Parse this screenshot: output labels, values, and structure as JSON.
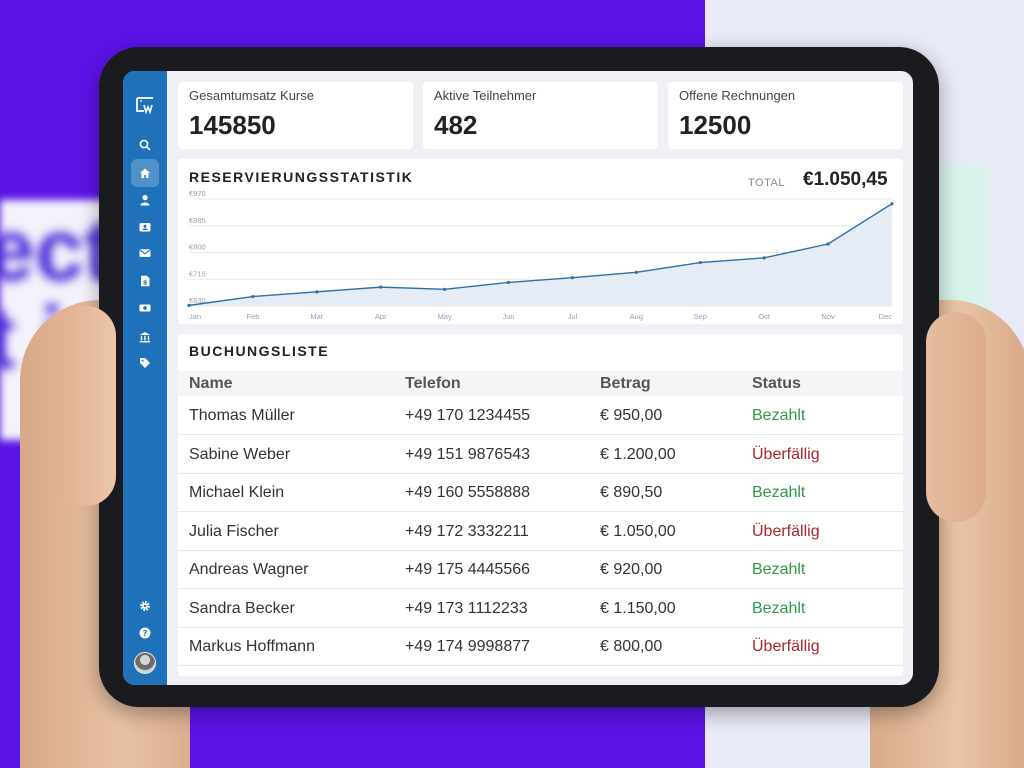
{
  "sidebar": {
    "items": [
      {
        "icon": "search-icon"
      },
      {
        "icon": "home-icon",
        "active": true
      },
      {
        "icon": "user-icon"
      },
      {
        "icon": "contact-card-icon"
      },
      {
        "icon": "mail-icon"
      },
      {
        "icon": "invoice-icon"
      },
      {
        "icon": "money-icon"
      },
      {
        "icon": "bank-icon"
      },
      {
        "icon": "tag-icon"
      }
    ],
    "bottom": [
      {
        "icon": "gear-icon"
      },
      {
        "icon": "help-icon"
      }
    ]
  },
  "kpis": [
    {
      "label": "Gesamtumsatz Kurse",
      "value": "145850"
    },
    {
      "label": "Aktive Teilnehmer",
      "value": "482"
    },
    {
      "label": "Offene Rechnungen",
      "value": "12500"
    }
  ],
  "reservations": {
    "title": "RESERVIERUNGSSTATISTIK",
    "total_label": "TOTAL",
    "total_value": "€1.050,45"
  },
  "chart_data": {
    "type": "area",
    "categories": [
      "Jan",
      "Feb",
      "Mar",
      "Apr",
      "May",
      "Jun",
      "Jul",
      "Aug",
      "Sep",
      "Oct",
      "Nov",
      "Dec"
    ],
    "series": [
      {
        "values": [
          632,
          660,
          675,
          690,
          683,
          705,
          720,
          737,
          768,
          783,
          827,
          955
        ]
      }
    ],
    "ylim": [
      630,
      970
    ],
    "yticks": [
      "€970",
      "€885",
      "€800",
      "€715",
      "€630"
    ],
    "ytick_values": [
      970,
      885,
      800,
      715,
      630
    ],
    "colors": {
      "line": "#2f6fa8",
      "fill": "#e3eaf4",
      "grid": "#e6e8ec"
    }
  },
  "bookings": {
    "title": "BUCHUNGSLISTE",
    "columns": [
      "Name",
      "Telefon",
      "Betrag",
      "Status"
    ],
    "rows": [
      {
        "name": "Thomas Müller",
        "phone": "+49 170 1234455",
        "amount": "€ 950,00",
        "status": "Bezahlt",
        "paid": true
      },
      {
        "name": "Sabine Weber",
        "phone": "+49 151 9876543",
        "amount": "€ 1.200,00",
        "status": "Überfällig",
        "paid": false
      },
      {
        "name": "Michael Klein",
        "phone": "+49 160 5558888",
        "amount": "€ 890,50",
        "status": "Bezahlt",
        "paid": true
      },
      {
        "name": "Julia Fischer",
        "phone": "+49 172 3332211",
        "amount": "€ 1.050,00",
        "status": "Überfällig",
        "paid": false
      },
      {
        "name": "Andreas Wagner",
        "phone": "+49 175 4445566",
        "amount": "€ 920,00",
        "status": "Bezahlt",
        "paid": true
      },
      {
        "name": "Sandra Becker",
        "phone": "+49 173 1112233",
        "amount": "€ 1.150,00",
        "status": "Bezahlt",
        "paid": true
      },
      {
        "name": "Markus Hoffmann",
        "phone": "+49 174 9998877",
        "amount": "€ 800,00",
        "status": "Überfällig",
        "paid": false
      }
    ]
  },
  "background": {
    "blurred_text": "ect\nt i"
  }
}
